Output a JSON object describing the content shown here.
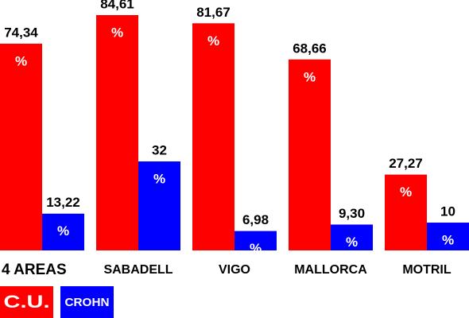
{
  "chart_data": {
    "type": "bar",
    "categories": [
      "4 AREAS",
      "SABADELL",
      "VIGO",
      "MALLORCA",
      "MOTRIL"
    ],
    "value_suffix": "%",
    "series": [
      {
        "name": "C.U.",
        "color": "#ff0000",
        "values": [
          74.34,
          84.61,
          81.67,
          68.66,
          27.27
        ],
        "value_labels": [
          "74,34",
          "84,61",
          "81,67",
          "68,66",
          "27,27"
        ]
      },
      {
        "name": "CROHN",
        "color": "#0000ff",
        "values": [
          13.22,
          32,
          6.98,
          9.3,
          10
        ],
        "value_labels": [
          "13,22",
          "32",
          "6,98",
          "9,30",
          "10"
        ]
      }
    ]
  }
}
